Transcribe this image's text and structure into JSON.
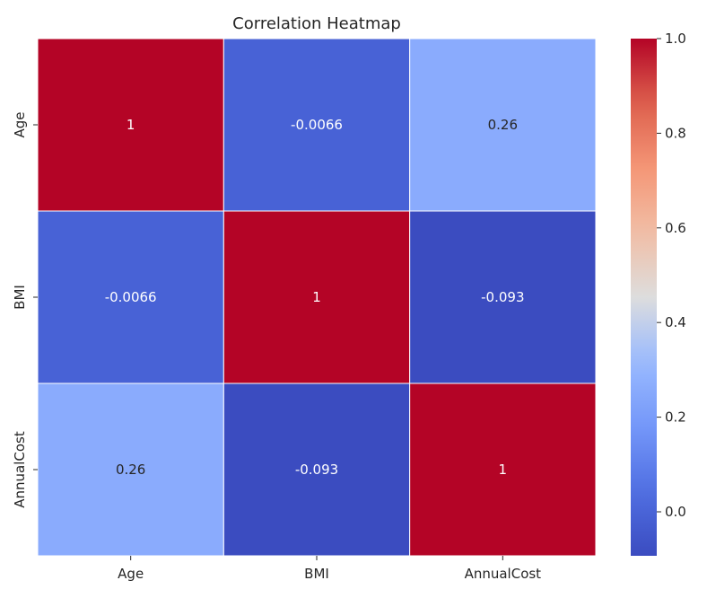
{
  "chart_data": {
    "type": "heatmap",
    "title": "Correlation Heatmap",
    "xlabel": "",
    "ylabel": "",
    "x_categories": [
      "Age",
      "BMI",
      "AnnualCost"
    ],
    "y_categories": [
      "Age",
      "BMI",
      "AnnualCost"
    ],
    "values": [
      [
        1,
        -0.0066,
        0.26
      ],
      [
        -0.0066,
        1,
        -0.093
      ],
      [
        0.26,
        -0.093,
        1
      ]
    ],
    "cell_labels": [
      [
        "1",
        "-0.0066",
        "0.26"
      ],
      [
        "-0.0066",
        "1",
        "-0.093"
      ],
      [
        "0.26",
        "-0.093",
        "1"
      ]
    ],
    "colormap": "coolwarm",
    "colorbar": {
      "range": [
        -0.093,
        1.0
      ],
      "ticks": [
        0.0,
        0.2,
        0.4,
        0.6,
        0.8,
        1.0
      ],
      "tick_labels": [
        "0.0",
        "0.2",
        "0.4",
        "0.6",
        "0.8",
        "1.0"
      ]
    },
    "grid": false,
    "cell_border_color": "#ffffff",
    "text_color": "#ffffff",
    "light_text_color": "#262626"
  }
}
